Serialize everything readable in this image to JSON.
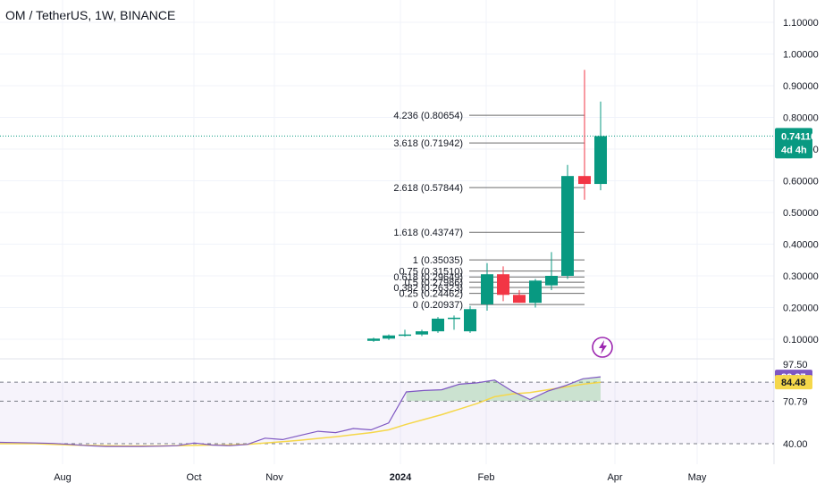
{
  "header": {
    "title": "OM / TetherUS, 1W, BINANCE"
  },
  "chart_data": [
    {
      "type": "candlestick",
      "title": "OM / TetherUS, 1W, BINANCE",
      "y_ticks": [
        "1.10000",
        "1.00000",
        "0.90000",
        "0.80000",
        "0.70000",
        "0.60000",
        "0.50000",
        "0.40000",
        "0.30000",
        "0.20000",
        "0.10000"
      ],
      "ylim": [
        0.0,
        1.12
      ],
      "x_ticks": [
        "Aug",
        "Oct",
        "Nov",
        "2024",
        "Feb",
        "Apr",
        "May"
      ],
      "price_tag": {
        "value": "0.74116",
        "countdown": "4d 4h"
      },
      "colors": {
        "up": "#089981",
        "down": "#f23645",
        "fib": "#6b6b6b"
      },
      "candles": [
        {
          "open": 0.095,
          "high": 0.105,
          "low": 0.092,
          "close": 0.102
        },
        {
          "open": 0.102,
          "high": 0.115,
          "low": 0.098,
          "close": 0.112
        },
        {
          "open": 0.112,
          "high": 0.13,
          "low": 0.108,
          "close": 0.115
        },
        {
          "open": 0.115,
          "high": 0.13,
          "low": 0.11,
          "close": 0.125
        },
        {
          "open": 0.125,
          "high": 0.17,
          "low": 0.12,
          "close": 0.165
        },
        {
          "open": 0.165,
          "high": 0.175,
          "low": 0.13,
          "close": 0.168
        },
        {
          "open": 0.125,
          "high": 0.205,
          "low": 0.12,
          "close": 0.195
        },
        {
          "open": 0.21,
          "high": 0.34,
          "low": 0.19,
          "close": 0.305
        },
        {
          "open": 0.305,
          "high": 0.33,
          "low": 0.22,
          "close": 0.24
        },
        {
          "open": 0.24,
          "high": 0.255,
          "low": 0.215,
          "close": 0.215
        },
        {
          "open": 0.215,
          "high": 0.29,
          "low": 0.2,
          "close": 0.285
        },
        {
          "open": 0.27,
          "high": 0.375,
          "low": 0.255,
          "close": 0.3
        },
        {
          "open": 0.3,
          "high": 0.65,
          "low": 0.29,
          "close": 0.615
        },
        {
          "open": 0.615,
          "high": 0.95,
          "low": 0.54,
          "close": 0.59
        },
        {
          "open": 0.59,
          "high": 0.85,
          "low": 0.57,
          "close": 0.741
        }
      ],
      "fib_levels": [
        {
          "label": "4.236 (0.80654)",
          "value": 0.80654
        },
        {
          "label": "3.618 (0.71942)",
          "value": 0.71942
        },
        {
          "label": "2.618 (0.57844)",
          "value": 0.57844
        },
        {
          "label": "1.618 (0.43747)",
          "value": 0.43747
        },
        {
          "label": "1 (0.35035)",
          "value": 0.35035
        },
        {
          "label": "0.75 (0.31510)",
          "value": 0.3151
        },
        {
          "label": "0.618 (0.29649)",
          "value": 0.29649
        },
        {
          "label": "0.5 (0.27986)",
          "value": 0.27986
        },
        {
          "label": "0.382 (0.26323)",
          "value": 0.26323
        },
        {
          "label": "0.25 (0.24462)",
          "value": 0.24462
        },
        {
          "label": "0 (0.20937)",
          "value": 0.20937
        }
      ]
    },
    {
      "type": "line",
      "indicator": "rsi",
      "y_ticks": [
        "97.50",
        "70.79",
        "40.00"
      ],
      "ylim": [
        30,
        100
      ],
      "series": [
        {
          "values": [
            41.0,
            40.8,
            40.5,
            40.2,
            39.5,
            38.5,
            38.0,
            38.0,
            38.0,
            38.2,
            38.5,
            40.5,
            39.0,
            38.5,
            39.5,
            44.0,
            43.0,
            46.0,
            49.0,
            48.0,
            51.0,
            50.0,
            55.0,
            77.5,
            78.5,
            79.0,
            83.0,
            84.0,
            86.0,
            78.0,
            72.0,
            78.0,
            82.0,
            87.0,
            88.37
          ]
        },
        {
          "values": [
            40.0,
            40.0,
            40.0,
            39.5,
            39.0,
            38.8,
            38.6,
            38.4,
            38.4,
            38.4,
            38.6,
            38.8,
            39.0,
            39.0,
            39.5,
            40.5,
            41.5,
            42.5,
            43.8,
            45.0,
            46.5,
            48.0,
            50.0,
            54.0,
            57.5,
            61.0,
            65.0,
            69.0,
            74.0,
            76.0,
            77.0,
            79.0,
            81.0,
            83.0,
            84.48
          ]
        }
      ],
      "price_tags": [
        "88.37",
        "84.48"
      ],
      "colors": {
        "rsi": "#7e57c2",
        "ma": "#f5d74a",
        "band_fill": "#7e57c2"
      }
    }
  ],
  "icons": {
    "lightning": "lightning-icon"
  }
}
